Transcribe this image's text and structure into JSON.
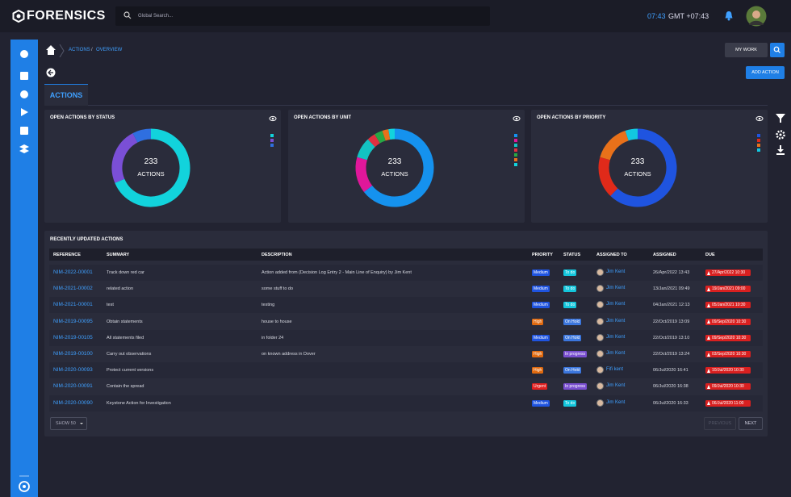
{
  "header": {
    "logo": "FORENSICS",
    "search_placeholder": "Global Search...",
    "time": "07:43",
    "timezone": "GMT +07:43"
  },
  "breadcrumb": {
    "items": [
      "ACTIONS",
      "OVERVIEW"
    ],
    "separator": "/"
  },
  "buttons": {
    "my_work": "MY WORK",
    "add_action": "ADD ACTION"
  },
  "tab": "ACTIONS",
  "charts": [
    {
      "type": "pie",
      "title": "OPEN ACTIONS BY STATUS",
      "center_value": 233,
      "center_label": "ACTIONS",
      "values": [
        160,
        55,
        18
      ],
      "colors": [
        "#12d3dc",
        "#7a4fd6",
        "#2f6fe0"
      ]
    },
    {
      "type": "pie",
      "title": "OPEN ACTIONS BY UNIT",
      "center_value": 233,
      "center_label": "ACTIONS",
      "values": [
        150,
        35,
        20,
        8,
        8,
        6,
        6
      ],
      "colors": [
        "#1592ee",
        "#e0179a",
        "#13c2c2",
        "#e03040",
        "#28a745",
        "#e8711a",
        "#12d3dc"
      ]
    },
    {
      "type": "pie",
      "title": "OPEN ACTIONS BY PRIORITY",
      "center_value": 233,
      "center_label": "ACTIONS",
      "values": [
        145,
        40,
        36,
        12
      ],
      "colors": [
        "#1f54e0",
        "#e02a1a",
        "#e8711a",
        "#12c8e0"
      ]
    }
  ],
  "table": {
    "title": "RECENTLY UPDATED ACTIONS",
    "columns": [
      "REFERENCE",
      "SUMMARY",
      "DESCRIPTION",
      "PRIORITY",
      "STATUS",
      "ASSIGNED TO",
      "ASSIGNED",
      "DUE"
    ],
    "badge_colors": {
      "Medium": "#1f54e0",
      "High": "#e06a10",
      "Urgent": "#e02020",
      "To do": "#13c6dc",
      "On Hold": "#3b76dd",
      "In progress": "#7a4fd0"
    },
    "rows": [
      {
        "reference": "NIM-2022-00001",
        "summary": "Track down red car",
        "description": "Action added from (Decision Log Entry 2 - Main Line of Enquiry) by Jim Kent",
        "priority": "Medium",
        "status": "To do",
        "assigned_to": "Jim Kent",
        "assigned": "26/Apr/2022 13:43",
        "due": "27/Apr/2022 10:30"
      },
      {
        "reference": "NIM-2021-00002",
        "summary": "related action",
        "description": "some stuff to do",
        "priority": "Medium",
        "status": "To do",
        "assigned_to": "Jim Kent",
        "assigned": "13/Jan/2021 09:49",
        "due": "19/Jan/2021 09:00"
      },
      {
        "reference": "NIM-2021-00001",
        "summary": "test",
        "description": "testing",
        "priority": "Medium",
        "status": "To do",
        "assigned_to": "Jim Kent",
        "assigned": "04/Jan/2021 12:13",
        "due": "05/Jan/2021 10:30"
      },
      {
        "reference": "NIM-2019-00095",
        "summary": "Obtain statements",
        "description": "house to house",
        "priority": "High",
        "status": "On Hold",
        "assigned_to": "Jim Kent",
        "assigned": "22/Oct/2019 13:09",
        "due": "09/Sep/2020 10:30"
      },
      {
        "reference": "NIM-2019-00105",
        "summary": "All statements filed",
        "description": "in folder 24",
        "priority": "Medium",
        "status": "On Hold",
        "assigned_to": "Jim Kent",
        "assigned": "22/Oct/2019 13:10",
        "due": "09/Sep/2020 10:30"
      },
      {
        "reference": "NIM-2019-00100",
        "summary": "Carry out observations",
        "description": "on known address in Dover",
        "priority": "High",
        "status": "In progress",
        "assigned_to": "Jim Kent",
        "assigned": "22/Oct/2019 13:24",
        "due": "03/Sep/2020 10:30"
      },
      {
        "reference": "NIM-2020-00093",
        "summary": "Protect current versions",
        "priority": "High",
        "status": "On Hold",
        "assigned_to": "Fifi kent",
        "assigned": "06/Jul/2020 16:41",
        "due": "10/Jul/2020 10:30"
      },
      {
        "reference": "NIM-2020-00091",
        "summary": "Contain the spread",
        "priority": "Urgent",
        "status": "In progress",
        "assigned_to": "Jim Kent",
        "assigned": "06/Jul/2020 16:38",
        "due": "09/Jul/2020 10:30"
      },
      {
        "reference": "NIM-2020-00090",
        "summary": "Keystone Action for Investigation",
        "priority": "Medium",
        "status": "To do",
        "assigned_to": "Jim Kent",
        "assigned": "06/Jul/2020 16:33",
        "due": "06/Jul/2020 11:00"
      }
    ]
  },
  "pagination": {
    "page_size": "SHOW 50",
    "previous": "PREVIOUS",
    "next": "NEXT"
  }
}
